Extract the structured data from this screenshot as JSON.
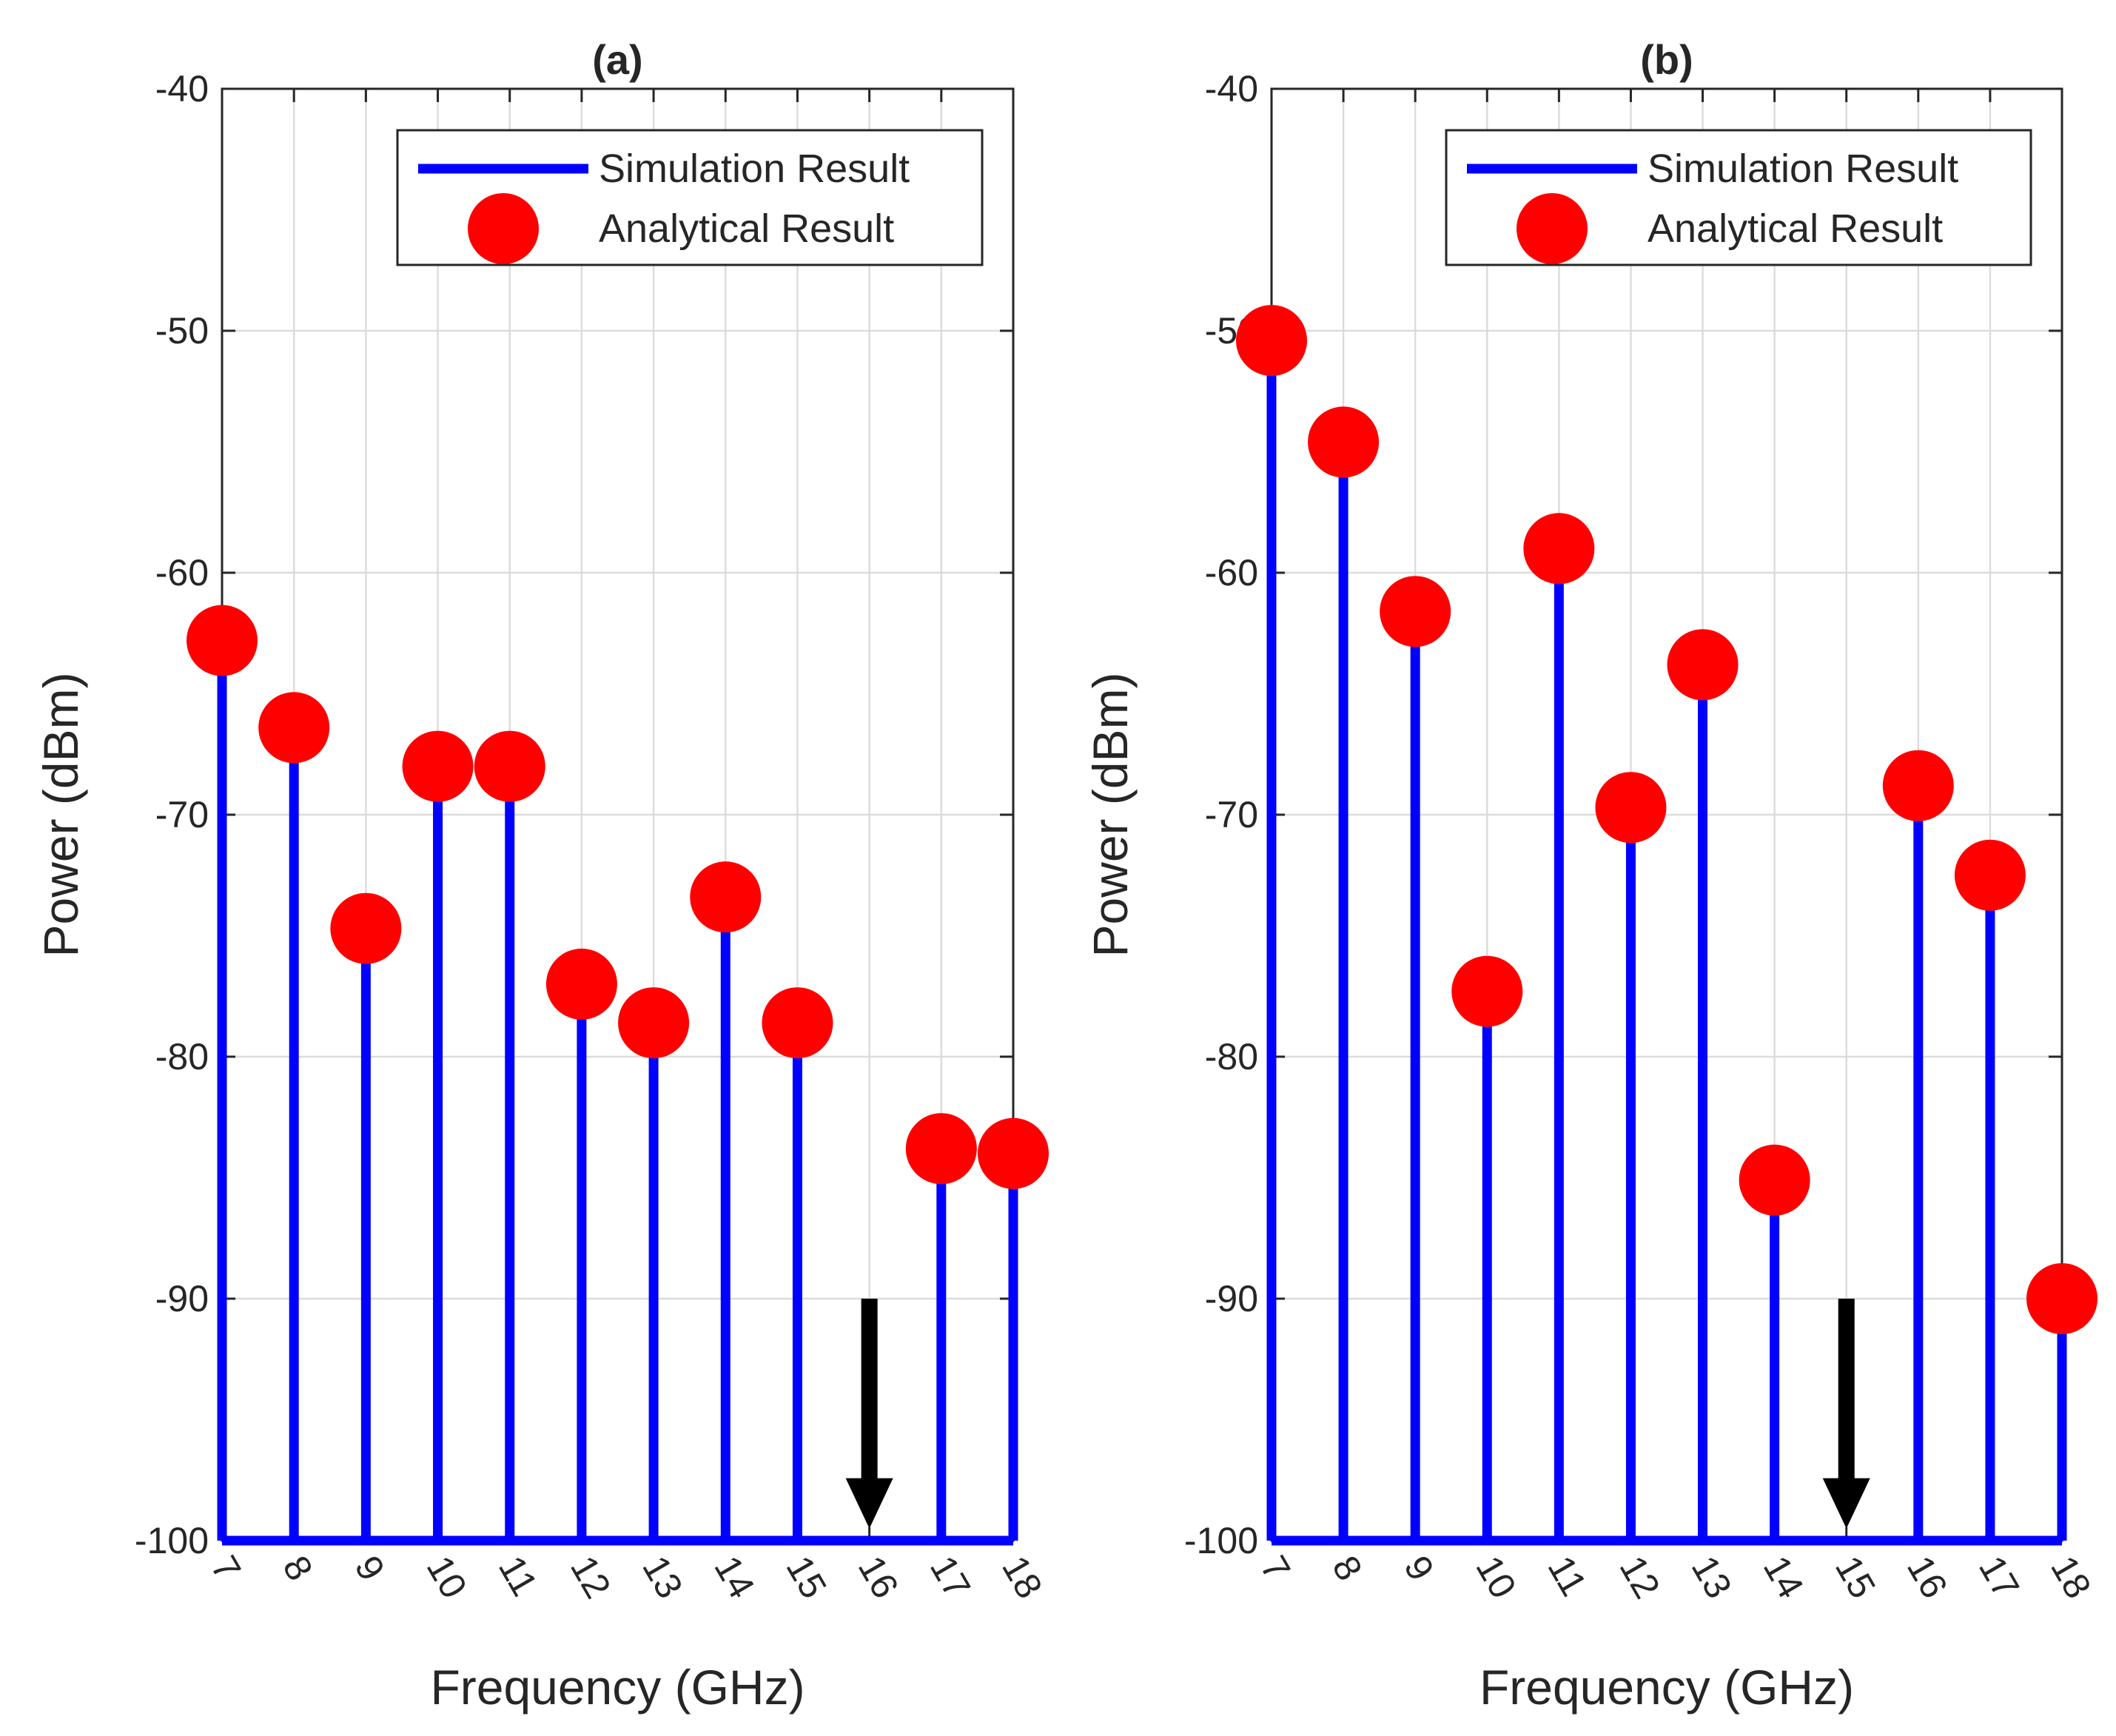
{
  "chart_data": [
    {
      "type": "stem",
      "panel": "(a)",
      "title": "(a)",
      "xlabel": "Frequency (GHz)",
      "ylabel": "Power (dBm)",
      "xlim": [
        7,
        18
      ],
      "ylim": [
        -100,
        -40
      ],
      "xticks": [
        "7",
        "8",
        "9",
        "10",
        "11",
        "12",
        "13",
        "14",
        "15",
        "16",
        "17",
        "18"
      ],
      "yticks": [
        "-40",
        "-50",
        "-60",
        "-70",
        "-80",
        "-90",
        "-100"
      ],
      "grid": true,
      "baseline": -100,
      "legend_position": "top-right",
      "legend": [
        "Simulation Result",
        "Analytical Result"
      ],
      "series": [
        {
          "name": "Simulation Result",
          "style": "stem",
          "x": [
            7,
            8,
            9,
            10,
            11,
            12,
            13,
            14,
            15,
            17,
            18
          ],
          "values": [
            -62.8,
            -66.4,
            -74.7,
            -68.0,
            -68.0,
            -77.0,
            -78.6,
            -73.4,
            -78.6,
            -83.8,
            -84.0
          ]
        },
        {
          "name": "Analytical Result",
          "style": "marker",
          "x": [
            7,
            8,
            9,
            10,
            11,
            12,
            13,
            14,
            15,
            17,
            18
          ],
          "values": [
            -62.8,
            -66.4,
            -74.7,
            -68.0,
            -68.0,
            -77.0,
            -78.6,
            -73.4,
            -78.6,
            -83.8,
            -84.0
          ]
        }
      ],
      "annotation": {
        "type": "arrow",
        "x": 16,
        "y_from": -90,
        "y_to": -99.5
      }
    },
    {
      "type": "stem",
      "panel": "(b)",
      "title": "(b)",
      "xlabel": "Frequency (GHz)",
      "ylabel": "Power (dBm)",
      "xlim": [
        7,
        18
      ],
      "ylim": [
        -100,
        -40
      ],
      "xticks": [
        "7",
        "8",
        "9",
        "10",
        "11",
        "12",
        "13",
        "14",
        "15",
        "16",
        "17",
        "18"
      ],
      "yticks": [
        "-40",
        "-50",
        "-60",
        "-70",
        "-80",
        "-90",
        "-100"
      ],
      "grid": true,
      "baseline": -100,
      "legend_position": "top-right",
      "legend": [
        "Simulation Result",
        "Analytical Result"
      ],
      "series": [
        {
          "name": "Simulation Result",
          "style": "stem",
          "x": [
            7,
            8,
            9,
            10,
            11,
            12,
            13,
            14,
            16,
            17,
            18
          ],
          "values": [
            -50.4,
            -54.6,
            -61.6,
            -77.3,
            -59.0,
            -69.7,
            -63.8,
            -85.1,
            -68.8,
            -72.5,
            -90.0
          ]
        },
        {
          "name": "Analytical Result",
          "style": "marker",
          "x": [
            7,
            8,
            9,
            10,
            11,
            12,
            13,
            14,
            16,
            17,
            18
          ],
          "values": [
            -50.4,
            -54.6,
            -61.6,
            -77.3,
            -59.0,
            -69.7,
            -63.8,
            -85.1,
            -68.8,
            -72.5,
            -90.0
          ]
        }
      ],
      "annotation": {
        "type": "arrow",
        "x": 15,
        "y_from": -90,
        "y_to": -99.5
      }
    }
  ],
  "colors": {
    "stem": "#0000ff",
    "marker": "#ff0000",
    "arrow": "#000000",
    "grid": "#dcdcdc",
    "axes": "#262626"
  }
}
